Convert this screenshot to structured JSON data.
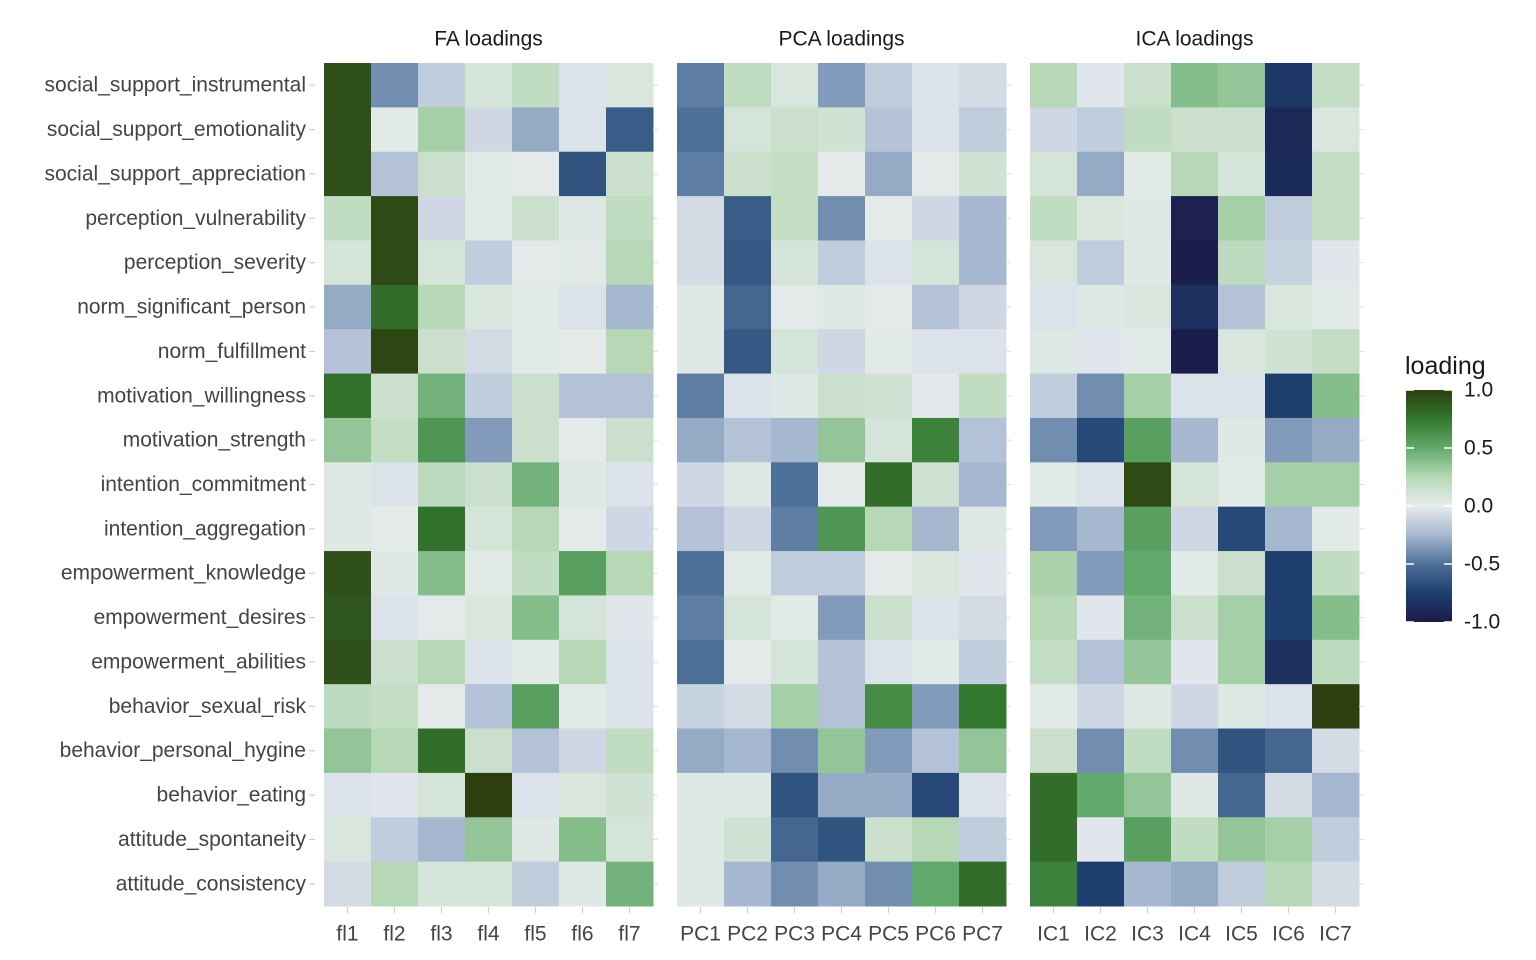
{
  "chart_data": {
    "type": "heatmap",
    "title": "",
    "xlabel": "",
    "ylabel": "",
    "rows": [
      "social_support_instrumental",
      "social_support_emotionality",
      "social_support_appreciation",
      "perception_vulnerability",
      "perception_severity",
      "norm_significant_person",
      "norm_fulfillment",
      "motivation_willingness",
      "motivation_strength",
      "intention_commitment",
      "intention_aggregation",
      "empowerment_knowledge",
      "empowerment_desires",
      "empowerment_abilities",
      "behavior_sexual_risk",
      "behavior_personal_hygine",
      "behavior_eating",
      "attitude_spontaneity",
      "attitude_consistency"
    ],
    "facets": [
      {
        "title": "FA loadings",
        "columns": [
          "fl1",
          "fl2",
          "fl3",
          "fl4",
          "fl5",
          "fl6",
          "fl7"
        ],
        "values": [
          [
            0.92,
            -0.4,
            -0.15,
            0.1,
            0.2,
            -0.05,
            0.08
          ],
          [
            0.93,
            0.03,
            0.3,
            -0.1,
            -0.3,
            -0.05,
            -0.6
          ],
          [
            0.92,
            -0.2,
            0.15,
            0.03,
            0.02,
            -0.65,
            0.15
          ],
          [
            0.2,
            0.95,
            -0.1,
            0.03,
            0.15,
            0.05,
            0.2
          ],
          [
            0.1,
            0.95,
            0.1,
            -0.15,
            0.02,
            0.03,
            0.25
          ],
          [
            -0.3,
            0.8,
            0.25,
            0.08,
            0.03,
            -0.05,
            -0.25
          ],
          [
            -0.2,
            0.97,
            0.15,
            -0.08,
            0.03,
            0.02,
            0.25
          ],
          [
            0.78,
            0.15,
            0.45,
            -0.15,
            0.15,
            -0.2,
            -0.2
          ],
          [
            0.35,
            0.18,
            0.6,
            -0.35,
            0.15,
            0.02,
            0.15
          ],
          [
            0.05,
            -0.05,
            0.22,
            0.15,
            0.45,
            0.05,
            -0.05
          ],
          [
            0.05,
            0.02,
            0.78,
            0.1,
            0.25,
            0.02,
            -0.1
          ],
          [
            0.92,
            0.05,
            0.4,
            0.03,
            0.2,
            0.55,
            0.25
          ],
          [
            0.9,
            -0.05,
            0.02,
            0.08,
            0.4,
            0.1,
            -0.03
          ],
          [
            0.93,
            0.15,
            0.25,
            -0.05,
            0.03,
            0.25,
            -0.05
          ],
          [
            0.22,
            0.18,
            0.02,
            -0.2,
            0.55,
            0.03,
            -0.05
          ],
          [
            0.35,
            0.25,
            0.8,
            0.15,
            -0.2,
            -0.1,
            0.2
          ],
          [
            -0.05,
            -0.03,
            0.1,
            1.0,
            -0.05,
            0.08,
            0.12
          ],
          [
            0.08,
            -0.15,
            -0.25,
            0.35,
            0.05,
            0.4,
            0.1
          ],
          [
            -0.08,
            0.25,
            0.1,
            0.1,
            -0.15,
            0.05,
            0.45
          ]
        ]
      },
      {
        "title": "PCA loadings",
        "columns": [
          "PC1",
          "PC2",
          "PC3",
          "PC4",
          "PC5",
          "PC6",
          "PC7"
        ],
        "values": [
          [
            -0.45,
            0.2,
            0.08,
            -0.35,
            -0.15,
            -0.05,
            -0.08
          ],
          [
            -0.5,
            0.1,
            0.15,
            0.12,
            -0.2,
            -0.05,
            -0.15
          ],
          [
            -0.45,
            0.15,
            0.18,
            0.02,
            -0.3,
            0.02,
            0.12
          ],
          [
            -0.08,
            -0.6,
            0.18,
            -0.4,
            0.02,
            -0.1,
            -0.25
          ],
          [
            -0.08,
            -0.62,
            0.1,
            -0.15,
            -0.05,
            0.1,
            -0.25
          ],
          [
            0.05,
            -0.55,
            0.02,
            0.05,
            0.02,
            -0.2,
            -0.1
          ],
          [
            0.05,
            -0.62,
            0.1,
            -0.1,
            0.03,
            -0.05,
            -0.05
          ],
          [
            -0.45,
            -0.05,
            0.05,
            0.15,
            0.12,
            -0.02,
            0.2
          ],
          [
            -0.3,
            -0.2,
            -0.25,
            0.35,
            0.1,
            0.7,
            -0.2
          ],
          [
            -0.1,
            0.05,
            -0.5,
            0.02,
            0.8,
            0.12,
            -0.25
          ],
          [
            -0.2,
            -0.1,
            -0.45,
            0.6,
            0.25,
            -0.25,
            0.05
          ],
          [
            -0.5,
            0.03,
            -0.15,
            -0.15,
            0.02,
            0.08,
            -0.03
          ],
          [
            -0.45,
            0.1,
            0.03,
            -0.35,
            0.15,
            -0.05,
            -0.08
          ],
          [
            -0.5,
            0.02,
            0.1,
            -0.2,
            -0.05,
            0.03,
            -0.15
          ],
          [
            -0.12,
            -0.08,
            0.3,
            -0.2,
            0.65,
            -0.35,
            0.75
          ],
          [
            -0.3,
            -0.25,
            -0.4,
            0.35,
            -0.35,
            -0.2,
            0.35
          ],
          [
            0.05,
            0.05,
            -0.65,
            -0.3,
            -0.3,
            -0.7,
            -0.05
          ],
          [
            0.05,
            0.12,
            -0.55,
            -0.65,
            0.15,
            0.25,
            -0.15
          ],
          [
            0.05,
            -0.25,
            -0.4,
            -0.3,
            -0.4,
            0.5,
            0.8
          ]
        ]
      },
      {
        "title": "ICA loadings",
        "columns": [
          "IC1",
          "IC2",
          "IC3",
          "IC4",
          "IC5",
          "IC6",
          "IC7"
        ],
        "values": [
          [
            0.25,
            -0.03,
            0.15,
            0.4,
            0.35,
            -0.8,
            0.18
          ],
          [
            -0.1,
            -0.15,
            0.2,
            0.15,
            0.15,
            -0.9,
            0.08
          ],
          [
            0.1,
            -0.3,
            0.03,
            0.25,
            0.1,
            -0.88,
            0.18
          ],
          [
            0.2,
            0.08,
            0.05,
            -0.95,
            0.3,
            -0.15,
            0.18
          ],
          [
            0.08,
            -0.15,
            0.05,
            -0.97,
            0.22,
            -0.12,
            -0.03
          ],
          [
            -0.05,
            0.05,
            0.08,
            -0.85,
            -0.2,
            0.08,
            0.03
          ],
          [
            0.05,
            -0.03,
            0.03,
            -0.98,
            0.08,
            0.12,
            0.18
          ],
          [
            -0.15,
            -0.4,
            0.3,
            -0.05,
            -0.05,
            -0.75,
            0.4
          ],
          [
            -0.4,
            -0.7,
            0.55,
            -0.25,
            0.05,
            -0.35,
            -0.3
          ],
          [
            0.03,
            -0.05,
            0.95,
            0.1,
            0.03,
            0.3,
            0.3
          ],
          [
            -0.35,
            -0.25,
            0.55,
            -0.1,
            -0.7,
            -0.25,
            0.03
          ],
          [
            0.28,
            -0.35,
            0.5,
            0.03,
            0.15,
            -0.75,
            0.2
          ],
          [
            0.25,
            -0.03,
            0.45,
            0.15,
            0.3,
            -0.75,
            0.4
          ],
          [
            0.18,
            -0.2,
            0.35,
            -0.03,
            0.3,
            -0.85,
            0.22
          ],
          [
            0.03,
            -0.1,
            0.05,
            -0.1,
            0.05,
            -0.05,
            1.0
          ],
          [
            0.15,
            -0.4,
            0.2,
            -0.4,
            -0.65,
            -0.55,
            -0.08
          ],
          [
            0.8,
            0.5,
            0.35,
            0.05,
            -0.55,
            -0.08,
            -0.25
          ],
          [
            0.8,
            -0.03,
            0.55,
            0.2,
            0.35,
            0.3,
            -0.15
          ],
          [
            0.7,
            -0.75,
            -0.25,
            -0.3,
            -0.15,
            0.25,
            -0.08
          ]
        ]
      }
    ],
    "legend": {
      "title": "loading",
      "ticks": [
        "1.0",
        "0.5",
        "0.0",
        "-0.5",
        "-1.0"
      ],
      "tick_values": [
        1.0,
        0.5,
        0.0,
        -0.5,
        -1.0
      ],
      "placement": "right",
      "range": [
        -1.0,
        1.0
      ]
    },
    "colormap": {
      "stops": [
        {
          "v": -1.0,
          "color": "#1b1a48"
        },
        {
          "v": -0.75,
          "color": "#1e3f6e"
        },
        {
          "v": -0.5,
          "color": "#4d7099"
        },
        {
          "v": -0.25,
          "color": "#a6b8d0"
        },
        {
          "v": 0.0,
          "color": "#e8ecef"
        },
        {
          "v": 0.25,
          "color": "#b6d8b6"
        },
        {
          "v": 0.5,
          "color": "#62a96c"
        },
        {
          "v": 0.75,
          "color": "#33782f"
        },
        {
          "v": 1.0,
          "color": "#2d3f0f"
        }
      ]
    },
    "grid": true
  }
}
